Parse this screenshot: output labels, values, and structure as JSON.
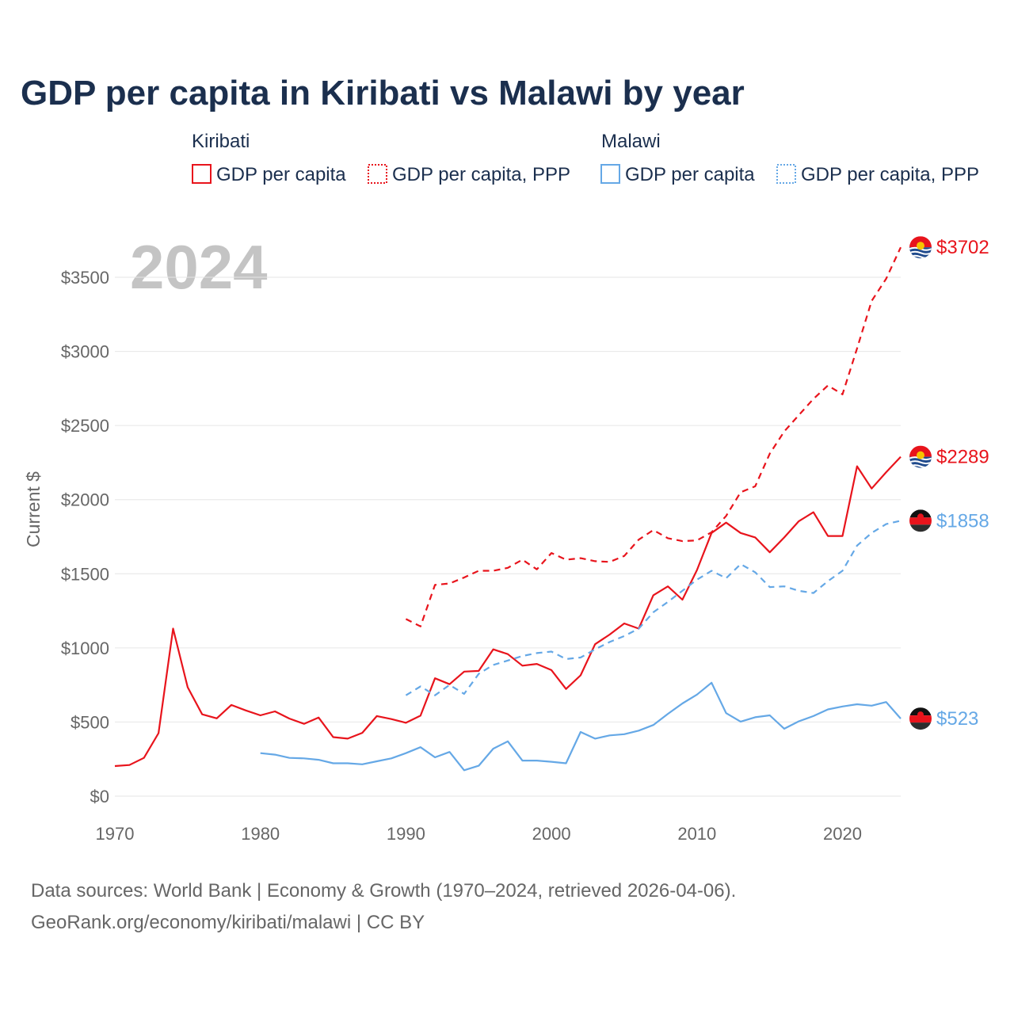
{
  "title": "GDP per capita in Kiribati vs Malawi by year",
  "year_watermark": "2024",
  "legend": {
    "groups": [
      {
        "name": "Kiribati",
        "items": [
          "GDP per capita",
          "GDP per capita, PPP"
        ],
        "color": "#e8141c"
      },
      {
        "name": "Malawi",
        "items": [
          "GDP per capita",
          "GDP per capita, PPP"
        ],
        "color": "#65a8e6"
      }
    ]
  },
  "end_labels": {
    "kiribati_ppp": "$3702",
    "kiribati_gdp": "$2289",
    "malawi_ppp": "$1858",
    "malawi_gdp": "$523"
  },
  "footer": {
    "line1": "Data sources: World Bank | Economy & Growth (1970–2024, retrieved 2026-04-06).",
    "line2": "GeoRank.org/economy/kiribati/malawi | CC BY"
  },
  "chart_data": {
    "type": "line",
    "title": "GDP per capita in Kiribati vs Malawi by year",
    "xlabel": "",
    "ylabel": "Current $",
    "xlim": [
      1970,
      2024
    ],
    "ylim": [
      0,
      3800
    ],
    "x_ticks": [
      1970,
      1980,
      1990,
      2000,
      2010,
      2020
    ],
    "y_ticks": [
      0,
      500,
      1000,
      1500,
      2000,
      2500,
      3000,
      3500
    ],
    "y_tick_labels": [
      "$0",
      "$500",
      "$1000",
      "$1500",
      "$2000",
      "$2500",
      "$3000",
      "$3500"
    ],
    "grid": true,
    "series": [
      {
        "name": "Kiribati GDP per capita",
        "color": "#e8141c",
        "dashed": false,
        "start_year": 1970,
        "values": [
          203,
          210,
          258,
          425,
          1130,
          735,
          552,
          525,
          615,
          578,
          545,
          572,
          523,
          488,
          530,
          398,
          388,
          427,
          540,
          520,
          495,
          543,
          795,
          755,
          840,
          845,
          990,
          958,
          880,
          892,
          850,
          723,
          815,
          1025,
          1090,
          1165,
          1130,
          1355,
          1415,
          1325,
          1525,
          1775,
          1845,
          1775,
          1745,
          1645,
          1745,
          1855,
          1915,
          1755,
          1755,
          2225,
          2075,
          2185,
          2289
        ]
      },
      {
        "name": "Kiribati GDP per capita, PPP",
        "color": "#e8141c",
        "dashed": true,
        "start_year": 1990,
        "values": [
          1195,
          1145,
          1425,
          1435,
          1475,
          1520,
          1520,
          1540,
          1595,
          1530,
          1640,
          1595,
          1605,
          1585,
          1580,
          1620,
          1730,
          1795,
          1740,
          1720,
          1725,
          1780,
          1890,
          2050,
          2090,
          2310,
          2460,
          2570,
          2680,
          2770,
          2710,
          3020,
          3340,
          3490,
          3702
        ]
      },
      {
        "name": "Malawi GDP per capita",
        "color": "#65a8e6",
        "dashed": false,
        "start_year": 1980,
        "values": [
          290,
          280,
          258,
          255,
          245,
          222,
          222,
          215,
          235,
          255,
          290,
          330,
          262,
          298,
          175,
          205,
          320,
          370,
          240,
          240,
          232,
          222,
          433,
          388,
          410,
          418,
          442,
          480,
          555,
          625,
          685,
          765,
          560,
          503,
          532,
          545,
          455,
          505,
          540,
          585,
          605,
          620,
          610,
          635,
          523
        ]
      },
      {
        "name": "Malawi GDP per capita, PPP",
        "color": "#65a8e6",
        "dashed": true,
        "start_year": 1990,
        "values": [
          680,
          740,
          680,
          750,
          690,
          825,
          885,
          915,
          945,
          965,
          975,
          925,
          935,
          990,
          1040,
          1080,
          1130,
          1240,
          1310,
          1385,
          1460,
          1520,
          1470,
          1565,
          1510,
          1410,
          1415,
          1385,
          1370,
          1450,
          1520,
          1690,
          1775,
          1835,
          1858
        ]
      }
    ]
  }
}
